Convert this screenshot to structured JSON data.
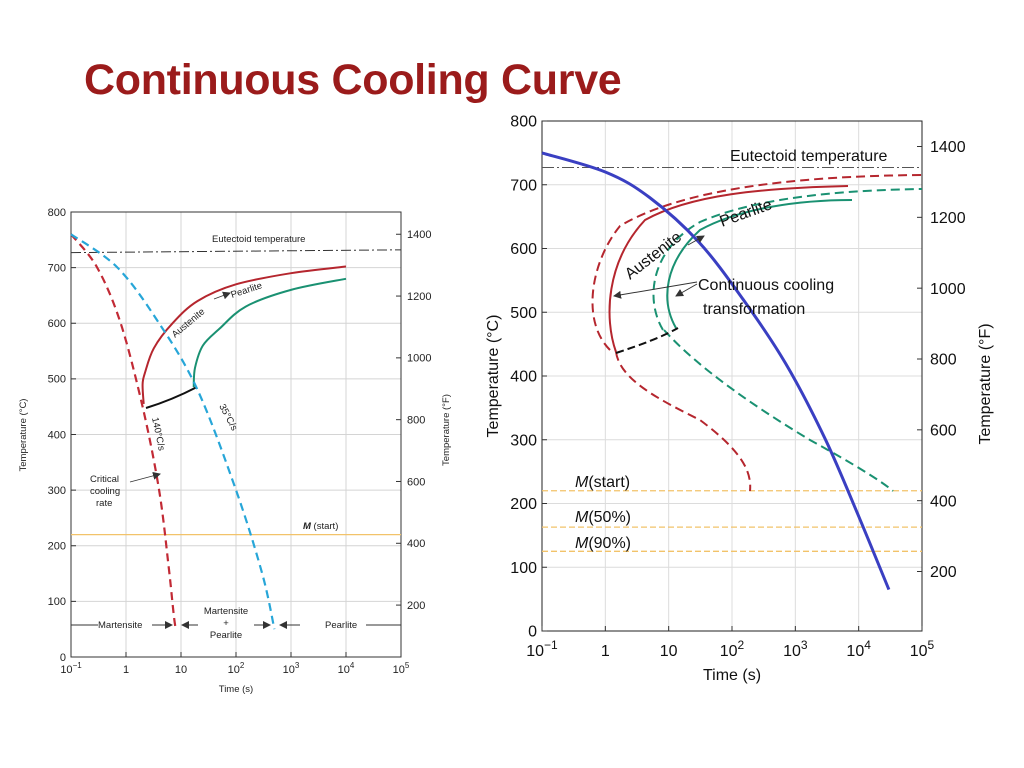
{
  "slide": {
    "title": "Continuous Cooling Curve"
  },
  "colors": {
    "title": "#9b1b1b",
    "start_curve": "#b5262e",
    "finish_curve": "#1a9172",
    "cooling_fast": "#c22a35",
    "cooling_slow": "#27a6d8",
    "cooling_blue": "#3a3fc2",
    "ms_line": "#f2c36a",
    "grid": "#cfcfcf"
  },
  "chart_data": [
    {
      "type": "line",
      "title": "",
      "xlabel": "Time (s)",
      "ylabel": "Temperature (°C)",
      "ylabel_right": "Temperature (°F)",
      "xscale": "log",
      "xlim": [
        0.1,
        100000
      ],
      "ylim": [
        0,
        800
      ],
      "x_tick_labels": [
        "10−1",
        "1",
        "10",
        "102",
        "103",
        "104",
        "105"
      ],
      "y_ticks": [
        0,
        100,
        200,
        300,
        400,
        500,
        600,
        700,
        800
      ],
      "y_ticks_right": [
        200,
        400,
        600,
        800,
        1000,
        1200,
        1400
      ],
      "grid": true,
      "annotations": {
        "eutectoid": "Eutectoid temperature",
        "austenite_pearlite_1": "Austenite",
        "austenite_pearlite_2": "Pearlite",
        "rate_fast": "140°C/s",
        "rate_slow": "35°C/s",
        "critical": [
          "Critical",
          "cooling",
          "rate"
        ],
        "ms_italic": "M",
        "ms_rest": " (start)",
        "zone_martensite": "Martensite",
        "zone_mixed": [
          "Martensite",
          "+",
          "Pearlite"
        ],
        "zone_pearlite": "Pearlite"
      },
      "eutectoid_temperature": 727,
      "ms_start": 220,
      "series": [
        {
          "role": "transformation-start",
          "x": [
            10000,
            1000,
            100,
            20,
            7,
            3.2,
            2.2,
            2,
            2.1
          ],
          "y": [
            702,
            690,
            670,
            640,
            600,
            555,
            510,
            490,
            455
          ]
        },
        {
          "role": "transformation-finish",
          "x": [
            10000,
            1000,
            150,
            50,
            25,
            18,
            17
          ],
          "y": [
            680,
            660,
            630,
            590,
            560,
            520,
            485
          ]
        },
        {
          "role": "cooling-140",
          "x": [
            0.1,
            0.3,
            0.8,
            2,
            4,
            6,
            7.3,
            8
          ],
          "y": [
            760,
            700,
            600,
            450,
            300,
            160,
            80,
            50
          ]
        },
        {
          "role": "cooling-35",
          "x": [
            0.1,
            0.7,
            4,
            20,
            100,
            300,
            500
          ],
          "y": [
            760,
            700,
            600,
            480,
            300,
            150,
            50
          ]
        }
      ]
    },
    {
      "type": "line",
      "title": "",
      "xlabel": "Time (s)",
      "ylabel": "Temperature (°C)",
      "ylabel_right": "Temperature (°F)",
      "xscale": "log",
      "xlim": [
        0.1,
        100000
      ],
      "ylim": [
        0,
        800
      ],
      "x_tick_labels": [
        "10−1",
        "1",
        "10",
        "102",
        "103",
        "104",
        "105"
      ],
      "y_ticks": [
        0,
        100,
        200,
        300,
        400,
        500,
        600,
        700,
        800
      ],
      "y_ticks_right": [
        200,
        400,
        600,
        800,
        1000,
        1200,
        1400
      ],
      "grid": true,
      "annotations": {
        "eutectoid": "Eutectoid temperature",
        "austenite": "Austenite",
        "pearlite": "Pearlite",
        "cct_1": "Continuous cooling",
        "cct_2": "transformation",
        "m_start": "(start)",
        "m_50": "(50%)",
        "m_90": "(90%)",
        "m_letter": "M"
      },
      "eutectoid_temperature": 727,
      "m_levels": [
        220,
        163,
        125
      ],
      "series": [
        {
          "role": "cooling-curve",
          "x": [
            0.1,
            1,
            5,
            30,
            150,
            700,
            3000,
            10000,
            30000
          ],
          "y": [
            750,
            720,
            680,
            610,
            520,
            420,
            300,
            180,
            65
          ]
        }
      ]
    }
  ]
}
